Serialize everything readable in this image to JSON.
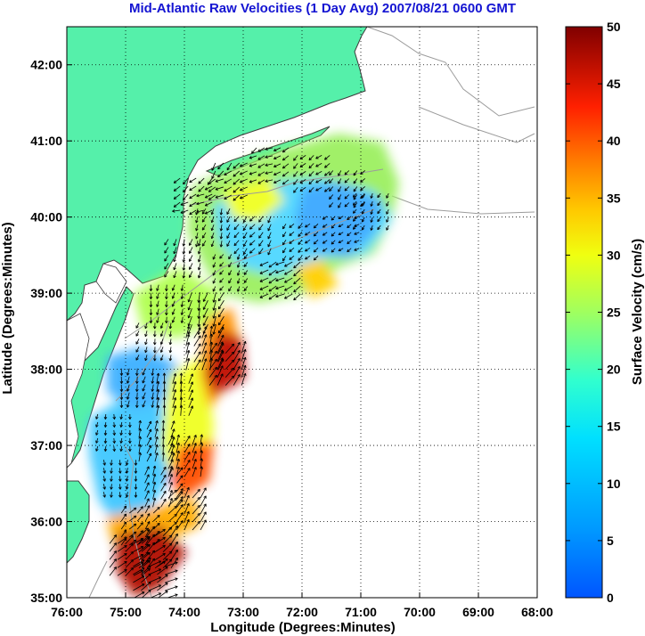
{
  "title": "Mid-Atlantic Raw Velocities (1 Day Avg) 2007/08/21 0600 GMT",
  "map": {
    "xlabel": "Longitude (Degrees:Minutes)",
    "ylabel": "Latitude (Degrees:Minutes)",
    "lon_range": [
      -76,
      -68
    ],
    "lat_range": [
      35,
      42.5
    ],
    "lon_ticks": [
      {
        "value": -76,
        "label": "76:00"
      },
      {
        "value": -75,
        "label": "75:00"
      },
      {
        "value": -74,
        "label": "74:00"
      },
      {
        "value": -73,
        "label": "73:00"
      },
      {
        "value": -72,
        "label": "72:00"
      },
      {
        "value": -71,
        "label": "71:00"
      },
      {
        "value": -70,
        "label": "70:00"
      },
      {
        "value": -69,
        "label": "69:00"
      },
      {
        "value": -68,
        "label": "68:00"
      }
    ],
    "lat_ticks": [
      {
        "value": 35,
        "label": "35:00"
      },
      {
        "value": 36,
        "label": "36:00"
      },
      {
        "value": 37,
        "label": "37:00"
      },
      {
        "value": 38,
        "label": "38:00"
      },
      {
        "value": 39,
        "label": "39:00"
      },
      {
        "value": 40,
        "label": "40:00"
      },
      {
        "value": 41,
        "label": "41:00"
      },
      {
        "value": 42,
        "label": "42:00"
      }
    ],
    "grid": "dotted",
    "land_color": "#55f0aa",
    "coast_color": "#3c3c3c",
    "contour_color": "#9c9c9c"
  },
  "colorbar": {
    "label": "Surface Velocity (cm/s)",
    "range": [
      0,
      50
    ],
    "ticks": [
      {
        "value": 0,
        "label": "0"
      },
      {
        "value": 5,
        "label": "5"
      },
      {
        "value": 10,
        "label": "10"
      },
      {
        "value": 15,
        "label": "15"
      },
      {
        "value": 20,
        "label": "20"
      },
      {
        "value": 25,
        "label": "25"
      },
      {
        "value": 30,
        "label": "30"
      },
      {
        "value": 35,
        "label": "35"
      },
      {
        "value": 40,
        "label": "40"
      },
      {
        "value": 45,
        "label": "45"
      },
      {
        "value": 50,
        "label": "50"
      }
    ],
    "colormap": "jet"
  },
  "velocity_field": [
    {
      "lon": -73.8,
      "lat": 40.3,
      "speed": 22,
      "dir": 250
    },
    {
      "lon": -73.2,
      "lat": 40.5,
      "speed": 24,
      "dir": 240
    },
    {
      "lon": -72.5,
      "lat": 40.7,
      "speed": 20,
      "dir": 245
    },
    {
      "lon": -71.8,
      "lat": 40.6,
      "speed": 16,
      "dir": 230
    },
    {
      "lon": -71.2,
      "lat": 40.4,
      "speed": 12,
      "dir": 220
    },
    {
      "lon": -70.8,
      "lat": 40.1,
      "speed": 8,
      "dir": 210
    },
    {
      "lon": -73.5,
      "lat": 39.9,
      "speed": 14,
      "dir": 200
    },
    {
      "lon": -72.8,
      "lat": 39.8,
      "speed": 18,
      "dir": 215
    },
    {
      "lon": -72.0,
      "lat": 39.7,
      "speed": 12,
      "dir": 225
    },
    {
      "lon": -71.3,
      "lat": 39.8,
      "speed": 9,
      "dir": 235
    },
    {
      "lon": -74.0,
      "lat": 39.5,
      "speed": 18,
      "dir": 200
    },
    {
      "lon": -73.2,
      "lat": 39.3,
      "speed": 10,
      "dir": 210
    },
    {
      "lon": -72.3,
      "lat": 39.2,
      "speed": 28,
      "dir": 240
    },
    {
      "lon": -74.3,
      "lat": 38.9,
      "speed": 14,
      "dir": 190
    },
    {
      "lon": -73.6,
      "lat": 38.8,
      "speed": 34,
      "dir": 200
    },
    {
      "lon": -74.5,
      "lat": 38.4,
      "speed": 12,
      "dir": 195
    },
    {
      "lon": -73.7,
      "lat": 38.2,
      "speed": 44,
      "dir": 20
    },
    {
      "lon": -73.3,
      "lat": 38.0,
      "speed": 46,
      "dir": 30
    },
    {
      "lon": -74.8,
      "lat": 37.8,
      "speed": 18,
      "dir": 190
    },
    {
      "lon": -74.2,
      "lat": 37.6,
      "speed": 36,
      "dir": 10
    },
    {
      "lon": -75.2,
      "lat": 37.2,
      "speed": 8,
      "dir": 185
    },
    {
      "lon": -74.5,
      "lat": 37.0,
      "speed": 28,
      "dir": 15
    },
    {
      "lon": -74.0,
      "lat": 36.8,
      "speed": 34,
      "dir": 20
    },
    {
      "lon": -75.1,
      "lat": 36.6,
      "speed": 10,
      "dir": 180
    },
    {
      "lon": -74.4,
      "lat": 36.4,
      "speed": 30,
      "dir": 25
    },
    {
      "lon": -74.0,
      "lat": 36.1,
      "speed": 40,
      "dir": 35
    },
    {
      "lon": -74.8,
      "lat": 35.9,
      "speed": 26,
      "dir": 40
    },
    {
      "lon": -74.5,
      "lat": 35.6,
      "speed": 44,
      "dir": 45
    },
    {
      "lon": -75.0,
      "lat": 35.5,
      "speed": 38,
      "dir": 50
    },
    {
      "lon": -74.6,
      "lat": 35.2,
      "speed": 48,
      "dir": 60
    }
  ]
}
